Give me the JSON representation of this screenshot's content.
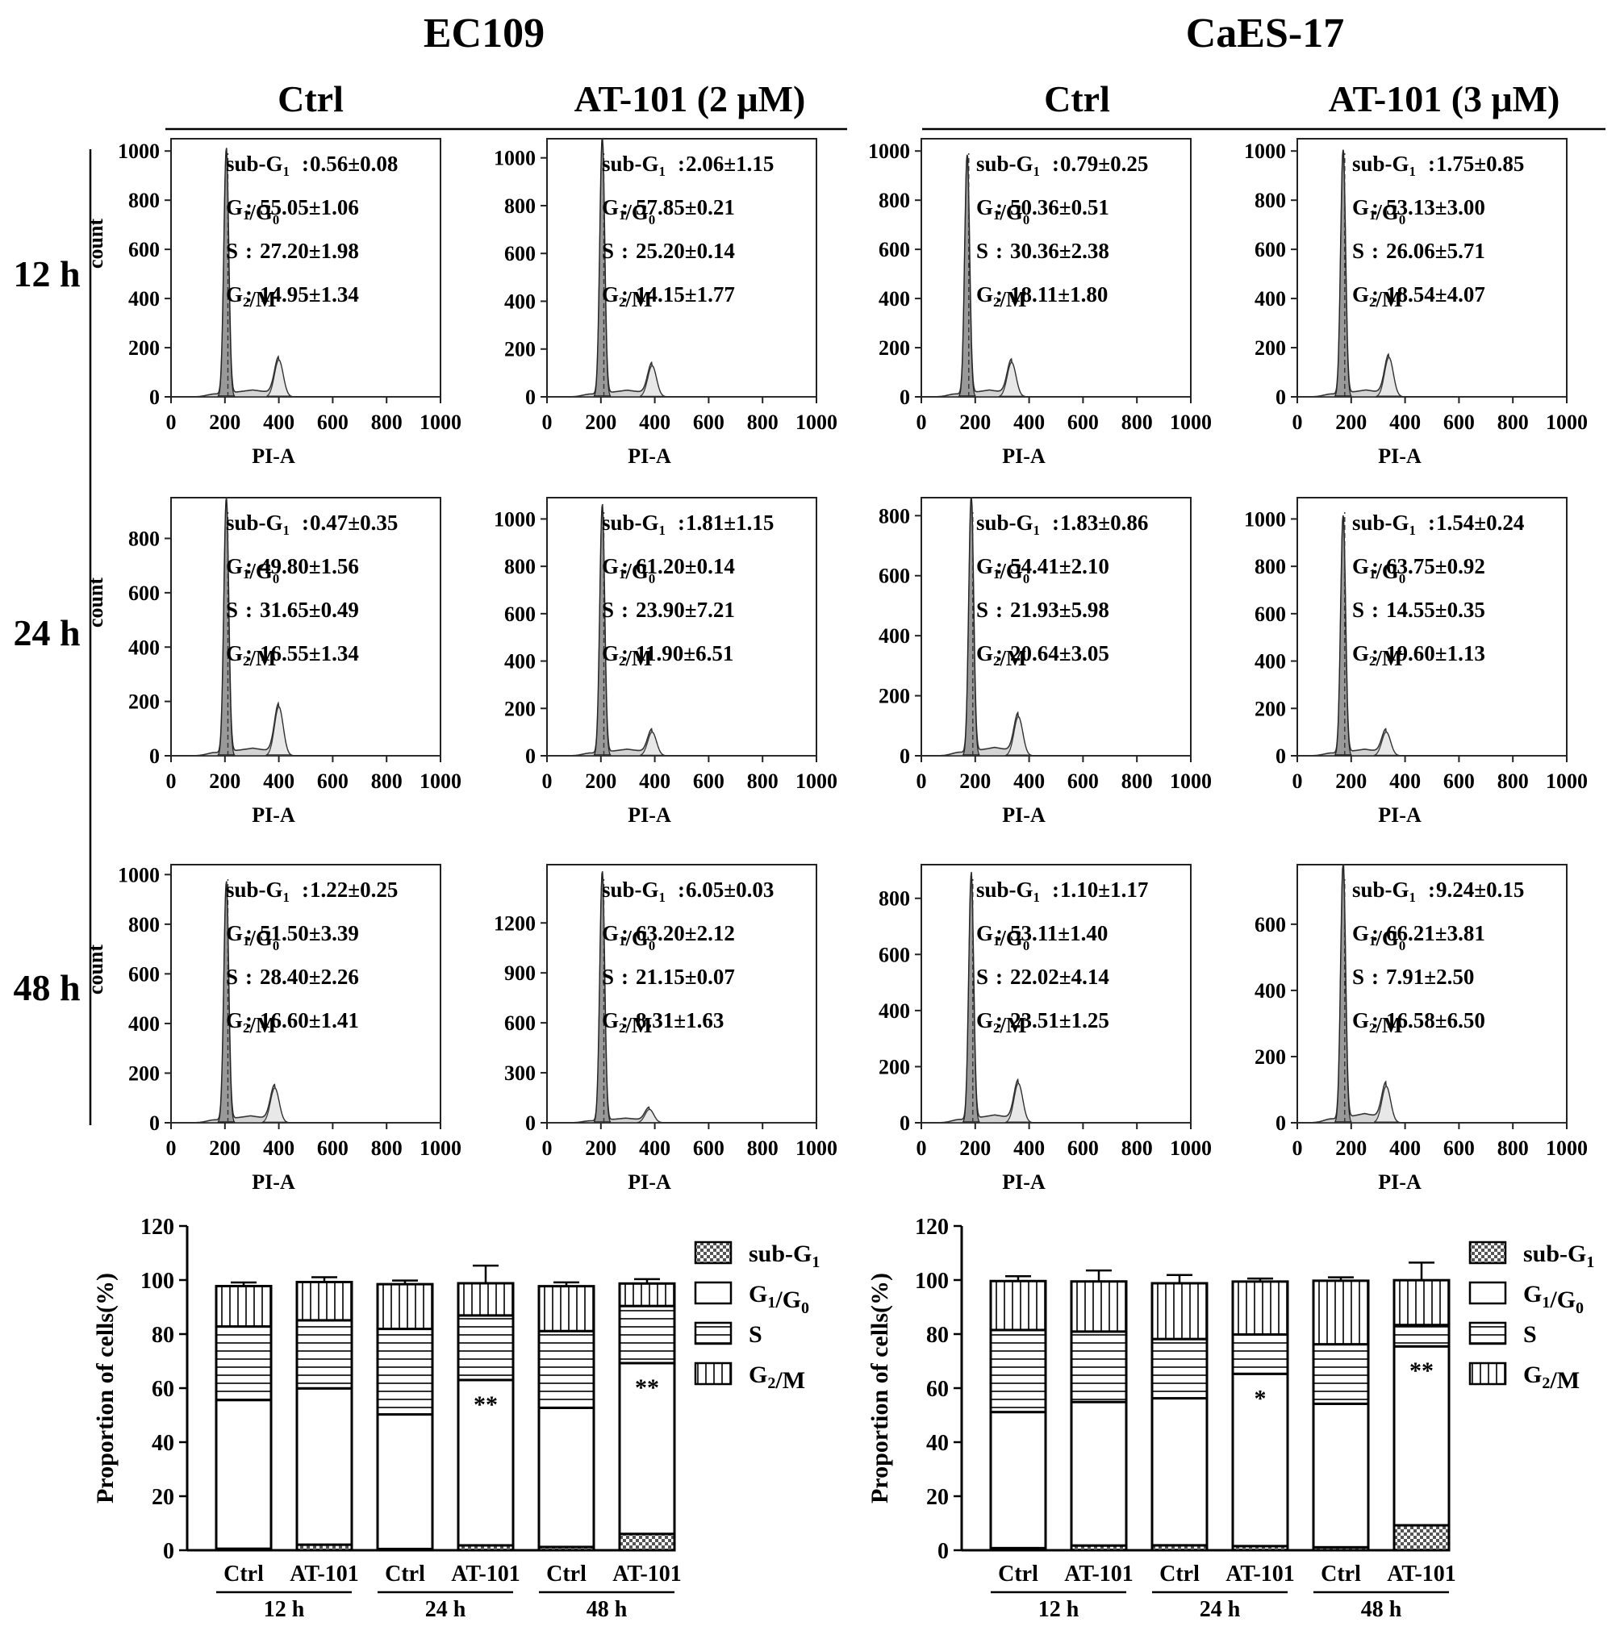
{
  "columns": {
    "cell_lines": [
      "EC109",
      "CaES-17"
    ],
    "conditions": [
      "Ctrl",
      "AT-101 (2 μM)",
      "Ctrl",
      "AT-101 (3 μM)"
    ]
  },
  "rows": [
    "12 h",
    "24 h",
    "48 h"
  ],
  "phase_labels": [
    "sub-G1",
    "G1/G0",
    "S",
    "G2/M"
  ],
  "bar_legend": [
    "sub-G1",
    "G1/G0",
    "S",
    "G2/M"
  ],
  "chart_data": [
    {
      "type": "area",
      "panel": "EC109 Ctrl 12 h",
      "xlabel": "PI-A",
      "ylabel": "count",
      "xlim": [
        0,
        1000
      ],
      "xticks": [
        0,
        200,
        400,
        600,
        800,
        1000
      ],
      "yticks": [
        0,
        200,
        400,
        600,
        800,
        1000
      ],
      "ylim": [
        0,
        1050
      ],
      "peaks": {
        "g1_x": 205,
        "g1_h": 1000,
        "g2_x": 400,
        "g2_h": 150
      },
      "stats": {
        "sub_g1": "0.56±0.08",
        "g1_g0": "55.05±1.06",
        "s": "27.20±1.98",
        "g2_m": "14.95±1.34"
      }
    },
    {
      "type": "area",
      "panel": "EC109 AT-101 12 h",
      "xlabel": "PI-A",
      "ylabel": "",
      "xlim": [
        0,
        1000
      ],
      "xticks": [
        0,
        200,
        400,
        600,
        800,
        1000
      ],
      "yticks": [
        0,
        200,
        400,
        600,
        800,
        1000
      ],
      "ylim": [
        0,
        1080
      ],
      "peaks": {
        "g1_x": 205,
        "g1_h": 1080,
        "g2_x": 390,
        "g2_h": 130
      },
      "stats": {
        "sub_g1": "2.06±1.15",
        "g1_g0": "57.85±0.21",
        "s": "25.20±0.14",
        "g2_m": "14.15±1.77"
      }
    },
    {
      "type": "area",
      "panel": "CaES-17 Ctrl 12 h",
      "xlabel": "PI-A",
      "ylabel": "",
      "xlim": [
        0,
        1000
      ],
      "xticks": [
        0,
        200,
        400,
        600,
        800,
        1000
      ],
      "yticks": [
        0,
        200,
        400,
        600,
        800,
        1000
      ],
      "ylim": [
        0,
        1050
      ],
      "peaks": {
        "g1_x": 170,
        "g1_h": 980,
        "g2_x": 335,
        "g2_h": 140
      },
      "stats": {
        "sub_g1": "0.79±0.25",
        "g1_g0": "50.36±0.51",
        "s": "30.36±2.38",
        "g2_m": "18.11±1.80"
      }
    },
    {
      "type": "area",
      "panel": "CaES-17 AT-101 12 h",
      "xlabel": "PI-A",
      "ylabel": "",
      "xlim": [
        0,
        1000
      ],
      "xticks": [
        0,
        200,
        400,
        600,
        800,
        1000
      ],
      "yticks": [
        0,
        200,
        400,
        600,
        800,
        1000
      ],
      "ylim": [
        0,
        1050
      ],
      "peaks": {
        "g1_x": 170,
        "g1_h": 1000,
        "g2_x": 340,
        "g2_h": 160
      },
      "stats": {
        "sub_g1": "1.75±0.85",
        "g1_g0": "53.13±3.00",
        "s": "26.06±5.71",
        "g2_m": "18.54±4.07"
      }
    },
    {
      "type": "area",
      "panel": "EC109 Ctrl 24 h",
      "xlabel": "PI-A",
      "ylabel": "count",
      "xlim": [
        0,
        1000
      ],
      "xticks": [
        0,
        200,
        400,
        600,
        800,
        1000
      ],
      "yticks": [
        0,
        200,
        400,
        600,
        800
      ],
      "ylim": [
        0,
        950
      ],
      "peaks": {
        "g1_x": 205,
        "g1_h": 940,
        "g2_x": 400,
        "g2_h": 180
      },
      "stats": {
        "sub_g1": "0.47±0.35",
        "g1_g0": "49.80±1.56",
        "s": "31.65±0.49",
        "g2_m": "16.55±1.34"
      }
    },
    {
      "type": "area",
      "panel": "EC109 AT-101 24 h",
      "xlabel": "PI-A",
      "ylabel": "",
      "xlim": [
        0,
        1000
      ],
      "xticks": [
        0,
        200,
        400,
        600,
        800,
        1000
      ],
      "yticks": [
        0,
        200,
        400,
        600,
        800,
        1000
      ],
      "ylim": [
        0,
        1090
      ],
      "peaks": {
        "g1_x": 205,
        "g1_h": 1050,
        "g2_x": 390,
        "g2_h": 100
      },
      "stats": {
        "sub_g1": "1.81±1.15",
        "g1_g0": "61.20±0.14",
        "s": "23.90±7.21",
        "g2_m": "11.90±6.51"
      }
    },
    {
      "type": "area",
      "panel": "CaES-17 Ctrl 24 h",
      "xlabel": "PI-A",
      "ylabel": "",
      "xlim": [
        0,
        1000
      ],
      "xticks": [
        0,
        200,
        400,
        600,
        800,
        1000
      ],
      "yticks": [
        0,
        200,
        400,
        600,
        800
      ],
      "ylim": [
        0,
        860
      ],
      "peaks": {
        "g1_x": 185,
        "g1_h": 860,
        "g2_x": 360,
        "g2_h": 130
      },
      "stats": {
        "sub_g1": "1.83±0.86",
        "g1_g0": "54.41±2.10",
        "s": "21.93±5.98",
        "g2_m": "20.64±3.05"
      }
    },
    {
      "type": "area",
      "panel": "CaES-17 AT-101 24 h",
      "xlabel": "PI-A",
      "ylabel": "",
      "xlim": [
        0,
        1000
      ],
      "xticks": [
        0,
        200,
        400,
        600,
        800,
        1000
      ],
      "yticks": [
        0,
        200,
        400,
        600,
        800,
        1000
      ],
      "ylim": [
        0,
        1090
      ],
      "peaks": {
        "g1_x": 170,
        "g1_h": 1010,
        "g2_x": 330,
        "g2_h": 100
      },
      "stats": {
        "sub_g1": "1.54±0.24",
        "g1_g0": "63.75±0.92",
        "s": "14.55±0.35",
        "g2_m": "19.60±1.13"
      }
    },
    {
      "type": "area",
      "panel": "EC109 Ctrl 48 h",
      "xlabel": "PI-A",
      "ylabel": "count",
      "xlim": [
        0,
        1000
      ],
      "xticks": [
        0,
        200,
        400,
        600,
        800,
        1000
      ],
      "yticks": [
        0,
        200,
        400,
        600,
        800,
        1000
      ],
      "ylim": [
        0,
        1040
      ],
      "peaks": {
        "g1_x": 205,
        "g1_h": 960,
        "g2_x": 385,
        "g2_h": 140
      },
      "stats": {
        "sub_g1": "1.22±0.25",
        "g1_g0": "51.50±3.39",
        "s": "28.40±2.26",
        "g2_m": "16.60±1.41"
      }
    },
    {
      "type": "area",
      "panel": "EC109 AT-101 48 h",
      "xlabel": "PI-A",
      "ylabel": "",
      "xlim": [
        0,
        1000
      ],
      "xticks": [
        0,
        200,
        400,
        600,
        800,
        1000
      ],
      "yticks": [
        0,
        300,
        600,
        900,
        1200
      ],
      "ylim": [
        0,
        1550
      ],
      "peaks": {
        "g1_x": 205,
        "g1_h": 1500,
        "g2_x": 380,
        "g2_h": 80
      },
      "stats": {
        "sub_g1": "6.05±0.03",
        "g1_g0": "63.20±2.12",
        "s": "21.15±0.07",
        "g2_m": "8.31±1.63"
      }
    },
    {
      "type": "area",
      "panel": "CaES-17 Ctrl 48 h",
      "xlabel": "PI-A",
      "ylabel": "",
      "xlim": [
        0,
        1000
      ],
      "xticks": [
        0,
        200,
        400,
        600,
        800,
        1000
      ],
      "yticks": [
        0,
        200,
        400,
        600,
        800
      ],
      "ylim": [
        0,
        920
      ],
      "peaks": {
        "g1_x": 185,
        "g1_h": 880,
        "g2_x": 360,
        "g2_h": 140
      },
      "stats": {
        "sub_g1": "1.10±1.17",
        "g1_g0": "53.11±1.40",
        "s": "22.02±4.14",
        "g2_m": "23.51±1.25"
      }
    },
    {
      "type": "area",
      "panel": "CaES-17 AT-101 48 h",
      "xlabel": "PI-A",
      "ylabel": "",
      "xlim": [
        0,
        1000
      ],
      "xticks": [
        0,
        200,
        400,
        600,
        800,
        1000
      ],
      "yticks": [
        0,
        200,
        400,
        600
      ],
      "ylim": [
        0,
        780
      ],
      "peaks": {
        "g1_x": 170,
        "g1_h": 780,
        "g2_x": 330,
        "g2_h": 110
      },
      "stats": {
        "sub_g1": "9.24±0.15",
        "g1_g0": "66.21±3.81",
        "s": "7.91±2.50",
        "g2_m": "16.58±6.50"
      }
    },
    {
      "type": "bar",
      "stacked": true,
      "panel": "EC109 proportions",
      "ylabel": "Proportion of cells(%)",
      "ylim": [
        0,
        120
      ],
      "yticks": [
        0,
        20,
        40,
        60,
        80,
        100,
        120
      ],
      "categories": [
        "Ctrl",
        "AT-101",
        "Ctrl",
        "AT-101",
        "Ctrl",
        "AT-101"
      ],
      "groups": [
        "12 h",
        "24 h",
        "48 h"
      ],
      "series": [
        {
          "name": "sub-G1",
          "values": [
            0.56,
            2.06,
            0.47,
            1.81,
            1.22,
            6.05
          ],
          "errors": [
            0.08,
            1.15,
            0.35,
            1.15,
            0.25,
            0.03
          ]
        },
        {
          "name": "G1/G0",
          "values": [
            55.05,
            57.85,
            49.8,
            61.2,
            51.5,
            63.2
          ],
          "errors": [
            1.06,
            0.21,
            1.56,
            0.14,
            3.39,
            2.12
          ]
        },
        {
          "name": "S",
          "values": [
            27.2,
            25.2,
            31.65,
            23.9,
            28.4,
            21.15
          ],
          "errors": [
            1.98,
            0.14,
            0.49,
            7.21,
            2.26,
            0.07
          ]
        },
        {
          "name": "G2/M",
          "values": [
            14.95,
            14.15,
            16.55,
            11.9,
            16.6,
            8.31
          ],
          "errors": [
            1.34,
            1.77,
            1.34,
            6.51,
            1.41,
            1.63
          ]
        }
      ],
      "annotations": [
        {
          "index": 3,
          "text": "**"
        },
        {
          "index": 5,
          "text": "**"
        }
      ]
    },
    {
      "type": "bar",
      "stacked": true,
      "panel": "CaES-17 proportions",
      "ylabel": "Proportion of cells(%)",
      "ylim": [
        0,
        120
      ],
      "yticks": [
        0,
        20,
        40,
        60,
        80,
        100,
        120
      ],
      "categories": [
        "Ctrl",
        "AT-101",
        "Ctrl",
        "AT-101",
        "Ctrl",
        "AT-101"
      ],
      "groups": [
        "12 h",
        "24 h",
        "48 h"
      ],
      "series": [
        {
          "name": "sub-G1",
          "values": [
            0.79,
            1.75,
            1.83,
            1.54,
            1.1,
            9.24
          ],
          "errors": [
            0.25,
            0.85,
            0.86,
            0.24,
            1.17,
            0.15
          ]
        },
        {
          "name": "G1/G0",
          "values": [
            50.36,
            53.13,
            54.41,
            63.75,
            53.11,
            66.21
          ],
          "errors": [
            0.51,
            3.0,
            2.1,
            0.92,
            1.4,
            3.81
          ]
        },
        {
          "name": "S",
          "values": [
            30.36,
            26.06,
            21.93,
            14.55,
            22.02,
            7.91
          ],
          "errors": [
            2.38,
            5.71,
            5.98,
            0.35,
            4.14,
            2.5
          ]
        },
        {
          "name": "G2/M",
          "values": [
            18.11,
            18.54,
            20.64,
            19.6,
            23.51,
            16.58
          ],
          "errors": [
            1.8,
            4.07,
            3.05,
            1.13,
            1.25,
            6.5
          ]
        }
      ],
      "annotations": [
        {
          "index": 3,
          "text": "*"
        },
        {
          "index": 5,
          "text": "**"
        }
      ]
    }
  ]
}
